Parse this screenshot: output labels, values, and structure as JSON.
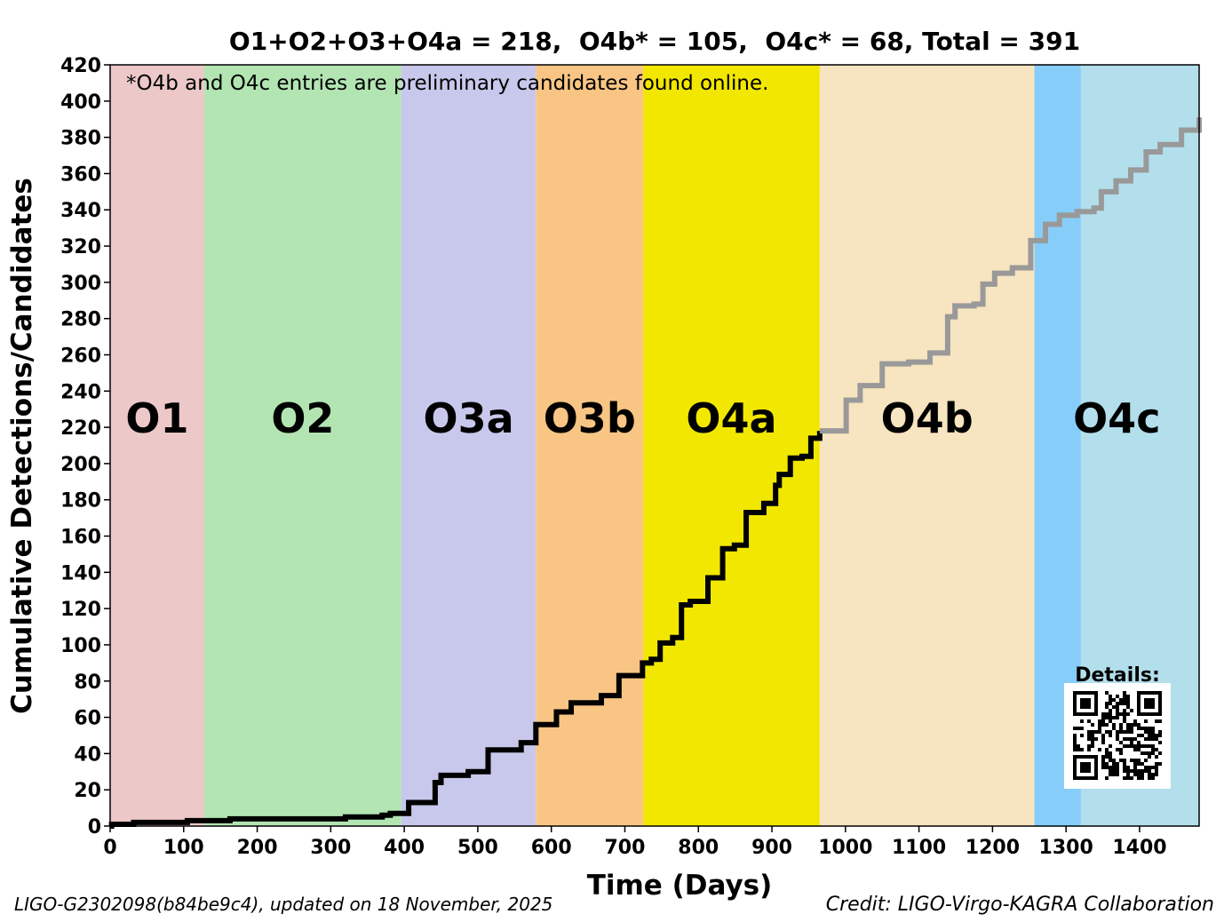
{
  "chart_data": {
    "type": "line",
    "title": "O1+O2+O3+O4a = 218,  O4b* = 105,  O4c* = 68, Total = 391",
    "xlabel": "Time (Days)",
    "ylabel": "Cumulative Detections/Candidates",
    "xlim": [
      0,
      1481
    ],
    "ylim": [
      0,
      420
    ],
    "xticks": [
      0,
      100,
      200,
      300,
      400,
      500,
      600,
      700,
      800,
      900,
      1000,
      1100,
      1200,
      1300,
      1400
    ],
    "yticks": [
      0,
      20,
      40,
      60,
      80,
      100,
      120,
      140,
      160,
      180,
      200,
      220,
      240,
      260,
      280,
      300,
      320,
      340,
      360,
      380,
      400,
      420
    ],
    "grid": false,
    "note": "*O4b and O4c entries are preliminary candidates found online.",
    "runs": [
      {
        "name": "O1",
        "start": 0,
        "end": 128,
        "color": "#ecc8c8"
      },
      {
        "name": "O2",
        "start": 128,
        "end": 396,
        "color": "#b3e5b3"
      },
      {
        "name": "O3a",
        "start": 396,
        "end": 579,
        "color": "#c8c8ec"
      },
      {
        "name": "O3b",
        "start": 579,
        "end": 725,
        "color": "#f8c584"
      },
      {
        "name": "O4a",
        "start": 725,
        "end": 965,
        "color": "#f2e700"
      },
      {
        "name": "O4b",
        "start": 965,
        "end": 1257,
        "color": "#f7e4c0"
      },
      {
        "name": "O4c",
        "start": 1257,
        "end": 1481,
        "color": "#b2dfeb",
        "sub_color": "#87cdf9",
        "sub_end": 1320
      }
    ],
    "series": [
      {
        "style": "confirmed",
        "color": "#000000",
        "points": [
          [
            0,
            0
          ],
          [
            2,
            1
          ],
          [
            32,
            2
          ],
          [
            105,
            3
          ],
          [
            163,
            4
          ],
          [
            320,
            5
          ],
          [
            370,
            6
          ],
          [
            381,
            7
          ],
          [
            406,
            13
          ],
          [
            442,
            24
          ],
          [
            450,
            28
          ],
          [
            487,
            30
          ],
          [
            514,
            42
          ],
          [
            559,
            46
          ],
          [
            579,
            56
          ],
          [
            607,
            63
          ],
          [
            627,
            68
          ],
          [
            668,
            72
          ],
          [
            692,
            83
          ],
          [
            724,
            90
          ],
          [
            736,
            92
          ],
          [
            748,
            101
          ],
          [
            765,
            104
          ],
          [
            777,
            122
          ],
          [
            789,
            124
          ],
          [
            813,
            137
          ],
          [
            833,
            153
          ],
          [
            849,
            155
          ],
          [
            865,
            173
          ],
          [
            889,
            178
          ],
          [
            905,
            188
          ],
          [
            910,
            194
          ],
          [
            925,
            203
          ],
          [
            941,
            204
          ],
          [
            953,
            214
          ],
          [
            965,
            218
          ]
        ]
      },
      {
        "style": "preliminary",
        "color": "#999999",
        "points": [
          [
            965,
            218
          ],
          [
            1001,
            235
          ],
          [
            1020,
            243
          ],
          [
            1050,
            255
          ],
          [
            1086,
            256
          ],
          [
            1115,
            261
          ],
          [
            1139,
            281
          ],
          [
            1149,
            287
          ],
          [
            1175,
            288
          ],
          [
            1187,
            299
          ],
          [
            1203,
            305
          ],
          [
            1227,
            308
          ],
          [
            1252,
            323
          ],
          [
            1266,
            323
          ],
          [
            1272,
            332
          ],
          [
            1291,
            337
          ],
          [
            1315,
            339
          ],
          [
            1338,
            341
          ],
          [
            1348,
            350
          ],
          [
            1368,
            356
          ],
          [
            1388,
            362
          ],
          [
            1409,
            372
          ],
          [
            1428,
            376
          ],
          [
            1457,
            384
          ],
          [
            1481,
            391
          ]
        ]
      }
    ]
  },
  "qr": {
    "label": "Details:"
  },
  "footer": {
    "left": "LIGO-G2302098(b84be9c4), updated on 18 November, 2025",
    "right": "Credit: LIGO-Virgo-KAGRA Collaboration"
  }
}
